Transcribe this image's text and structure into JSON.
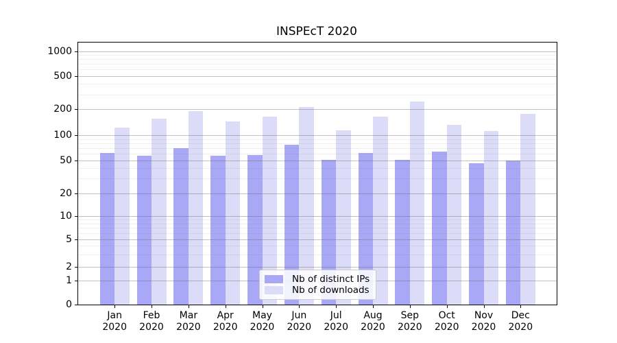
{
  "chart_data": {
    "type": "bar",
    "title": "INSPEcT 2020",
    "categories": [
      "Jan",
      "Feb",
      "Mar",
      "Apr",
      "May",
      "Jun",
      "Jul",
      "Aug",
      "Sep",
      "Oct",
      "Nov",
      "Dec"
    ],
    "category_year": "2020",
    "series": [
      {
        "name": "Nb of distinct IPs",
        "color": "#a8a8f6",
        "values": [
          61,
          57,
          70,
          57,
          58,
          77,
          51,
          61,
          51,
          64,
          46,
          50
        ]
      },
      {
        "name": "Nb of downloads",
        "color": "#dcdcf9",
        "values": [
          123,
          157,
          190,
          146,
          165,
          212,
          115,
          165,
          250,
          131,
          112,
          176
        ]
      }
    ],
    "y_axis": {
      "scale": "symlog",
      "ticks": [
        0,
        1,
        2,
        5,
        10,
        20,
        50,
        100,
        200,
        500,
        1000
      ],
      "minor_gridlines": [
        3,
        4,
        6,
        7,
        8,
        9,
        30,
        40,
        60,
        70,
        80,
        90,
        300,
        400,
        600,
        700,
        800,
        900
      ]
    },
    "xlabel": "",
    "ylabel": "",
    "grid": true,
    "legend_position": "lower center",
    "colors": {
      "bar_ips": "#a8a8f6",
      "bar_downloads": "#dcdcf9",
      "major_grid": "#c8c8c8",
      "minor_grid": "#e9e9e9",
      "spine": "#000000",
      "text": "#000000"
    }
  }
}
